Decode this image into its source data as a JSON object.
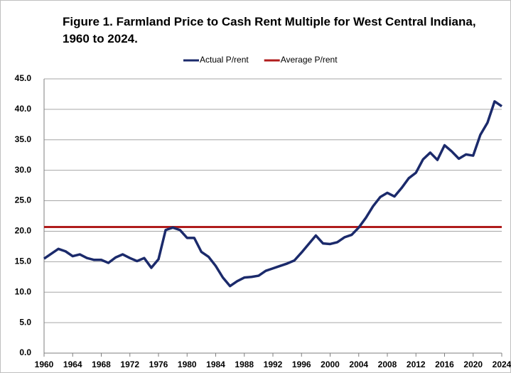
{
  "chart_data": {
    "type": "line",
    "title": "Figure 1.  Farmland Price to Cash Rent Multiple for West Central Indiana,",
    "subtitle": "1960 to 2024.",
    "x": [
      1960,
      1961,
      1962,
      1963,
      1964,
      1965,
      1966,
      1967,
      1968,
      1969,
      1970,
      1971,
      1972,
      1973,
      1974,
      1975,
      1976,
      1977,
      1978,
      1979,
      1980,
      1981,
      1982,
      1983,
      1984,
      1985,
      1986,
      1987,
      1988,
      1989,
      1990,
      1991,
      1992,
      1993,
      1994,
      1995,
      1996,
      1997,
      1998,
      1999,
      2000,
      2001,
      2002,
      2003,
      2004,
      2005,
      2006,
      2007,
      2008,
      2009,
      2010,
      2011,
      2012,
      2013,
      2014,
      2015,
      2016,
      2017,
      2018,
      2019,
      2020,
      2021,
      2022,
      2023,
      2024
    ],
    "series": [
      {
        "name": "Actual P/rent",
        "color": "#1b2a6b",
        "values": [
          15.5,
          16.3,
          17.1,
          16.7,
          15.9,
          16.2,
          15.6,
          15.3,
          15.3,
          14.8,
          15.7,
          16.2,
          15.6,
          15.1,
          15.6,
          14.0,
          15.4,
          20.2,
          20.6,
          20.2,
          18.9,
          18.9,
          16.6,
          15.8,
          14.3,
          12.4,
          11.0,
          11.8,
          12.4,
          12.5,
          12.7,
          13.5,
          13.9,
          14.3,
          14.7,
          15.2,
          16.5,
          17.9,
          19.3,
          18.0,
          17.9,
          18.2,
          19.0,
          19.4,
          20.6,
          22.2,
          24.1,
          25.6,
          26.3,
          25.7,
          27.1,
          28.7,
          29.6,
          31.8,
          32.9,
          31.7,
          34.1,
          33.1,
          31.9,
          32.6,
          32.4,
          35.8,
          37.8,
          41.3,
          40.5
        ]
      },
      {
        "name": "Average P/rent",
        "color": "#b01c1c",
        "values": [
          20.7,
          20.7,
          20.7,
          20.7,
          20.7,
          20.7,
          20.7,
          20.7,
          20.7,
          20.7,
          20.7,
          20.7,
          20.7,
          20.7,
          20.7,
          20.7,
          20.7,
          20.7,
          20.7,
          20.7,
          20.7,
          20.7,
          20.7,
          20.7,
          20.7,
          20.7,
          20.7,
          20.7,
          20.7,
          20.7,
          20.7,
          20.7,
          20.7,
          20.7,
          20.7,
          20.7,
          20.7,
          20.7,
          20.7,
          20.7,
          20.7,
          20.7,
          20.7,
          20.7,
          20.7,
          20.7,
          20.7,
          20.7,
          20.7,
          20.7,
          20.7,
          20.7,
          20.7,
          20.7,
          20.7,
          20.7,
          20.7,
          20.7,
          20.7,
          20.7,
          20.7,
          20.7,
          20.7,
          20.7,
          20.7
        ]
      }
    ],
    "xlim": [
      1960,
      2024
    ],
    "xticks": [
      1960,
      1964,
      1968,
      1972,
      1976,
      1980,
      1984,
      1988,
      1992,
      1996,
      2000,
      2004,
      2008,
      2012,
      2016,
      2020,
      2024
    ],
    "ylim": [
      0,
      45
    ],
    "yticks": [
      {
        "value": 0,
        "label": "0.0"
      },
      {
        "value": 5,
        "label": "5.0"
      },
      {
        "value": 10,
        "label": "10.0"
      },
      {
        "value": 15,
        "label": "15.0"
      },
      {
        "value": 20,
        "label": "20.0"
      },
      {
        "value": 25,
        "label": "25.0"
      },
      {
        "value": 30,
        "label": "30.0"
      },
      {
        "value": 35,
        "label": "35.0"
      },
      {
        "value": 40,
        "label": "40.0"
      },
      {
        "value": 45,
        "label": "45.0"
      }
    ],
    "grid": true,
    "legend": "top"
  }
}
